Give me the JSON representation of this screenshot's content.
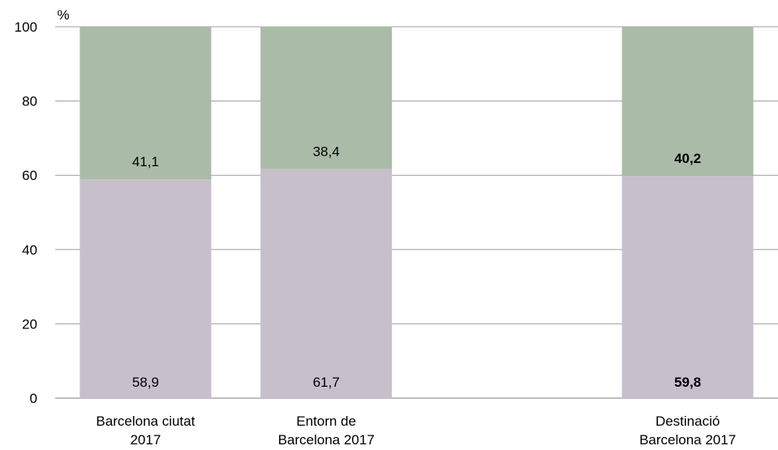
{
  "chart_data": {
    "type": "bar",
    "stacked": true,
    "unit_label": "%",
    "ylim": [
      0,
      100
    ],
    "yticks": [
      0,
      20,
      40,
      60,
      80,
      100
    ],
    "grid": true,
    "categories": [
      [
        "Barcelona ciutat",
        "2017"
      ],
      [
        "Entorn de",
        "Barcelona 2017"
      ],
      [
        "",
        ""
      ],
      [
        "Destinació",
        "Barcelona 2017"
      ]
    ],
    "series": [
      {
        "values": [
          58.9,
          61.7,
          null,
          59.8
        ],
        "labels": [
          "58,9",
          "61,7",
          "",
          "59,8"
        ],
        "color": "#c8bfcd"
      },
      {
        "values": [
          41.1,
          38.4,
          null,
          40.2
        ],
        "labels": [
          "41,1",
          "38,4",
          "",
          "40,2"
        ],
        "color": "#aabba8"
      }
    ],
    "bold_categories": [
      3
    ],
    "colors": {
      "grid": "#9e9e9e",
      "axis": "#7f7f7f"
    }
  }
}
